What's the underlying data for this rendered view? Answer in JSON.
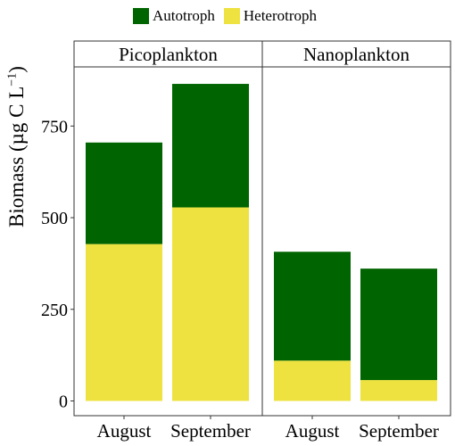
{
  "chart_data": {
    "type": "bar",
    "stacked": true,
    "ylabel": "Biomass (µg C L⁻¹)",
    "ylabel_parts": {
      "main": "Biomass  (µg C L",
      "sup": "−1",
      "close": ")"
    },
    "y_ticks": [
      0,
      250,
      500,
      750
    ],
    "ylim": [
      0,
      900
    ],
    "legend_position": "top",
    "facets": [
      {
        "label": "Picoplankton",
        "categories": [
          "August",
          "September"
        ],
        "series": [
          {
            "name": "Heterotroph",
            "values": [
              428,
              528
            ]
          },
          {
            "name": "Autotroph",
            "values": [
              277,
              337
            ]
          }
        ]
      },
      {
        "label": "Nanoplankton",
        "categories": [
          "August",
          "September"
        ],
        "series": [
          {
            "name": "Heterotroph",
            "values": [
              110,
              57
            ]
          },
          {
            "name": "Autotroph",
            "values": [
              297,
              304
            ]
          }
        ]
      }
    ],
    "legend": [
      {
        "name": "Autotroph",
        "color": "#006400"
      },
      {
        "name": "Heterotroph",
        "color": "#EEE240"
      }
    ],
    "colors": {
      "Autotroph": "#006400",
      "Heterotroph": "#EEE240"
    }
  }
}
